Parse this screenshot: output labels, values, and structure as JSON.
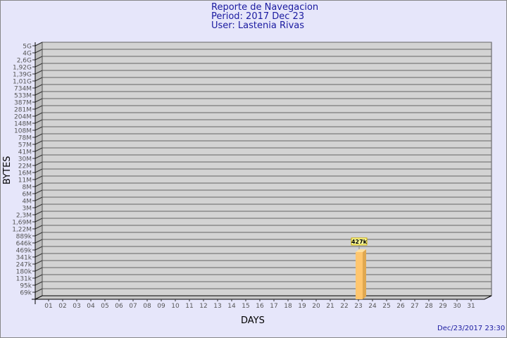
{
  "header": {
    "title": "Reporte de Navegacion",
    "period": "Period: 2017 Dec 23",
    "user": "User: Lastenia Rivas"
  },
  "footer": {
    "timestamp": "Dec/23/2017 23:30"
  },
  "chart_data": {
    "type": "bar",
    "xlabel": "DAYS",
    "ylabel": "BYTES",
    "y_scale": "nonlinear (labeled tick steps)",
    "y_ticks": [
      "5G",
      "4G",
      "2,6G",
      "1,92G",
      "1,39G",
      "1,01G",
      "734M",
      "533M",
      "387M",
      "281M",
      "204M",
      "148M",
      "108M",
      "78M",
      "57M",
      "41M",
      "30M",
      "22M",
      "16M",
      "11M",
      "8M",
      "6M",
      "4M",
      "3M",
      "2,3M",
      "1,69M",
      "1,22M",
      "889k",
      "646k",
      "469k",
      "341k",
      "247k",
      "180k",
      "131k",
      "95k",
      "69k"
    ],
    "categories": [
      "01",
      "02",
      "03",
      "04",
      "05",
      "06",
      "07",
      "08",
      "09",
      "10",
      "11",
      "12",
      "13",
      "14",
      "15",
      "16",
      "17",
      "18",
      "19",
      "20",
      "21",
      "22",
      "23",
      "24",
      "25",
      "26",
      "27",
      "28",
      "29",
      "30",
      "31"
    ],
    "values": [
      0,
      0,
      0,
      0,
      0,
      0,
      0,
      0,
      0,
      0,
      0,
      0,
      0,
      0,
      0,
      0,
      0,
      0,
      0,
      0,
      0,
      0,
      427000,
      0,
      0,
      0,
      0,
      0,
      0,
      0,
      0
    ],
    "data_labels": {
      "23": "427k"
    },
    "grid": true,
    "colors": {
      "bar": "#ffc66e",
      "bar_side": "#e0a850",
      "bar_top": "#ffe0a0",
      "wall": "#d3d3d3",
      "label_bg": "#ffff99",
      "label_border": "#c8a800"
    }
  }
}
